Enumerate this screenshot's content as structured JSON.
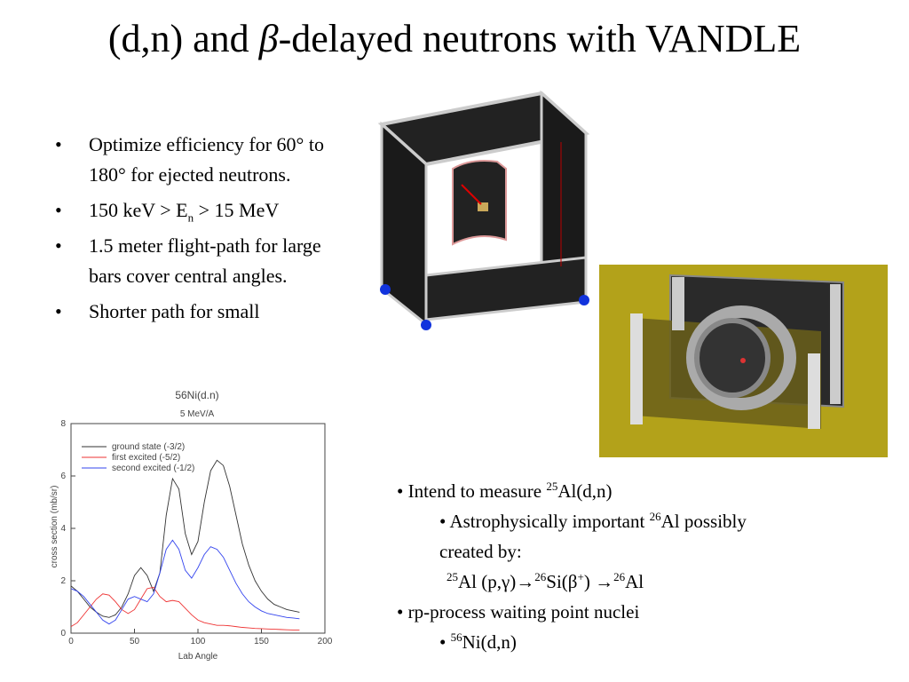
{
  "title": [
    "(d,n) and ",
    "β",
    "-delayed neutrons with VANDLE"
  ],
  "left_bullets": [
    [
      "Optimize efficiency for 60° to 180° for ejected neutrons."
    ],
    [
      "150 keV > E",
      "n",
      " > 15 MeV"
    ],
    [
      "1.5 meter flight-path for large bars cover central angles."
    ],
    [
      "Shorter path for small"
    ]
  ],
  "right_bullets": [
    [
      "Intend to measure ",
      "25",
      "Al(d,n)"
    ],
    [
      "Astrophysically important ",
      "26",
      "Al possibly created by:"
    ],
    [
      "25",
      "Al (p,γ)→",
      "26",
      "Si(β",
      "+",
      ") →",
      "26",
      "Al"
    ],
    [
      "rp-process waiting point nuclei"
    ],
    [
      "56",
      "Ni(d,n)"
    ]
  ],
  "chart": {
    "type": "line",
    "title": "56Ni(d.n)",
    "subtitle": "5 MeV/A",
    "x_label": "Lab Angle",
    "y_label": "cross section (mb/sr)",
    "xlim": [
      0,
      200
    ],
    "xticks": [
      0,
      50,
      100,
      150,
      200
    ],
    "ylim": [
      0,
      8
    ],
    "yticks": [
      0,
      2,
      4,
      6,
      8
    ],
    "x": [
      0,
      5,
      10,
      15,
      20,
      25,
      30,
      35,
      40,
      45,
      50,
      55,
      60,
      65,
      70,
      75,
      80,
      85,
      90,
      95,
      100,
      105,
      110,
      115,
      120,
      125,
      130,
      135,
      140,
      145,
      150,
      155,
      160,
      165,
      170,
      175,
      180
    ],
    "series": [
      {
        "name": "ground state (-3/2)",
        "color": "#333333",
        "values": [
          1.8,
          1.6,
          1.3,
          1.0,
          0.8,
          0.65,
          0.6,
          0.7,
          1.0,
          1.5,
          2.2,
          2.5,
          2.2,
          1.6,
          2.3,
          4.5,
          5.9,
          5.5,
          3.8,
          3.0,
          3.5,
          5.0,
          6.2,
          6.6,
          6.4,
          5.6,
          4.5,
          3.4,
          2.6,
          2.0,
          1.6,
          1.3,
          1.1,
          1.0,
          0.9,
          0.85,
          0.8
        ]
      },
      {
        "name": "first excited (-5/2)",
        "color": "#ee3333",
        "values": [
          0.25,
          0.4,
          0.7,
          1.0,
          1.3,
          1.5,
          1.45,
          1.2,
          0.9,
          0.75,
          0.9,
          1.3,
          1.7,
          1.75,
          1.4,
          1.2,
          1.25,
          1.2,
          0.95,
          0.7,
          0.5,
          0.4,
          0.35,
          0.3,
          0.3,
          0.28,
          0.25,
          0.22,
          0.2,
          0.18,
          0.17,
          0.16,
          0.15,
          0.14,
          0.13,
          0.12,
          0.12
        ]
      },
      {
        "name": "second excited (-1/2)",
        "color": "#3344ee",
        "values": [
          1.7,
          1.6,
          1.4,
          1.1,
          0.8,
          0.5,
          0.35,
          0.5,
          0.9,
          1.3,
          1.4,
          1.3,
          1.2,
          1.5,
          2.3,
          3.2,
          3.55,
          3.2,
          2.4,
          2.1,
          2.5,
          3.0,
          3.3,
          3.2,
          2.9,
          2.4,
          1.9,
          1.5,
          1.2,
          1.0,
          0.85,
          0.75,
          0.7,
          0.65,
          0.6,
          0.58,
          0.55
        ]
      }
    ]
  }
}
